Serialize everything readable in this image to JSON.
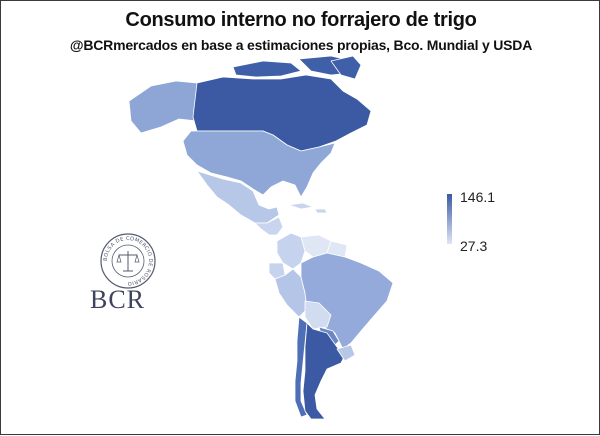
{
  "title": "Consumo interno no forrajero de trigo",
  "subtitle": "@BCRmercados en base a estimaciones propias, Bco. Mundial y USDA",
  "legend": {
    "max_label": "146.1",
    "min_label": "27.3",
    "max_color": "#3b5aa3",
    "min_color": "#dfe6f4"
  },
  "logo": {
    "seal_text": "BOLSA DE COMERCIO DE ROSARIO",
    "wordmark": "BCR"
  }
}
